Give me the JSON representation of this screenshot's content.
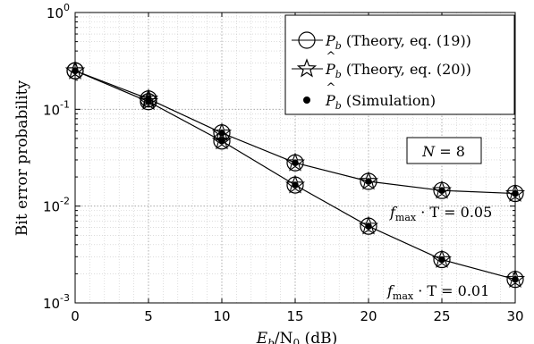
{
  "chart_data": {
    "type": "line",
    "title": "",
    "xlabel_main": "E",
    "xlabel_sub": "b",
    "xlabel_mid": "/N",
    "xlabel_sub2": "0",
    "xlabel_unit": " (dB)",
    "ylabel": "Bit error probability",
    "x_scale": "linear",
    "y_scale": "log",
    "xlim": [
      0,
      30
    ],
    "ylim": [
      0.001,
      1
    ],
    "x_ticks": [
      0,
      5,
      10,
      15,
      20,
      25,
      30
    ],
    "x_tick_labels": [
      "0",
      "5",
      "10",
      "15",
      "20",
      "25",
      "30"
    ],
    "y_ticks": [
      0.001,
      0.01,
      0.1,
      1
    ],
    "y_tick_labels": [
      {
        "base": "10",
        "exp": "-3"
      },
      {
        "base": "10",
        "exp": "-2"
      },
      {
        "base": "10",
        "exp": "-1"
      },
      {
        "base": "10",
        "exp": "0"
      }
    ],
    "grid": "on (major and minor, dotted)",
    "legend_position": "top-right",
    "legend": [
      {
        "marker": "circle",
        "sym": "P",
        "sub": "b",
        "hat": false,
        "text": " (Theory, eq. (19))"
      },
      {
        "marker": "star",
        "sym": "P",
        "sub": "b",
        "hat": true,
        "text": " (Theory, eq. (20))"
      },
      {
        "marker": "dot",
        "sym": "P",
        "sub": "b",
        "hat": true,
        "text": " (Simulation)"
      }
    ],
    "series": [
      {
        "curve": "f_max·T = 0.05",
        "x": [
          0,
          5,
          10,
          15,
          20,
          25,
          30
        ],
        "y": [
          0.25,
          0.128,
          0.057,
          0.028,
          0.018,
          0.0145,
          0.0135
        ]
      },
      {
        "curve": "f_max·T = 0.01",
        "x": [
          0,
          5,
          10,
          15,
          20,
          25,
          30
        ],
        "y": [
          0.25,
          0.12,
          0.047,
          0.0165,
          0.0062,
          0.0028,
          0.00175
        ]
      }
    ],
    "annotations": {
      "n_box": {
        "sym": "N",
        "text": " = 8"
      },
      "curve_labels": [
        {
          "f": "f",
          "sub": "max",
          "text": " · T = 0.05"
        },
        {
          "f": "f",
          "sub": "max",
          "text": " · T = 0.01"
        }
      ]
    }
  }
}
